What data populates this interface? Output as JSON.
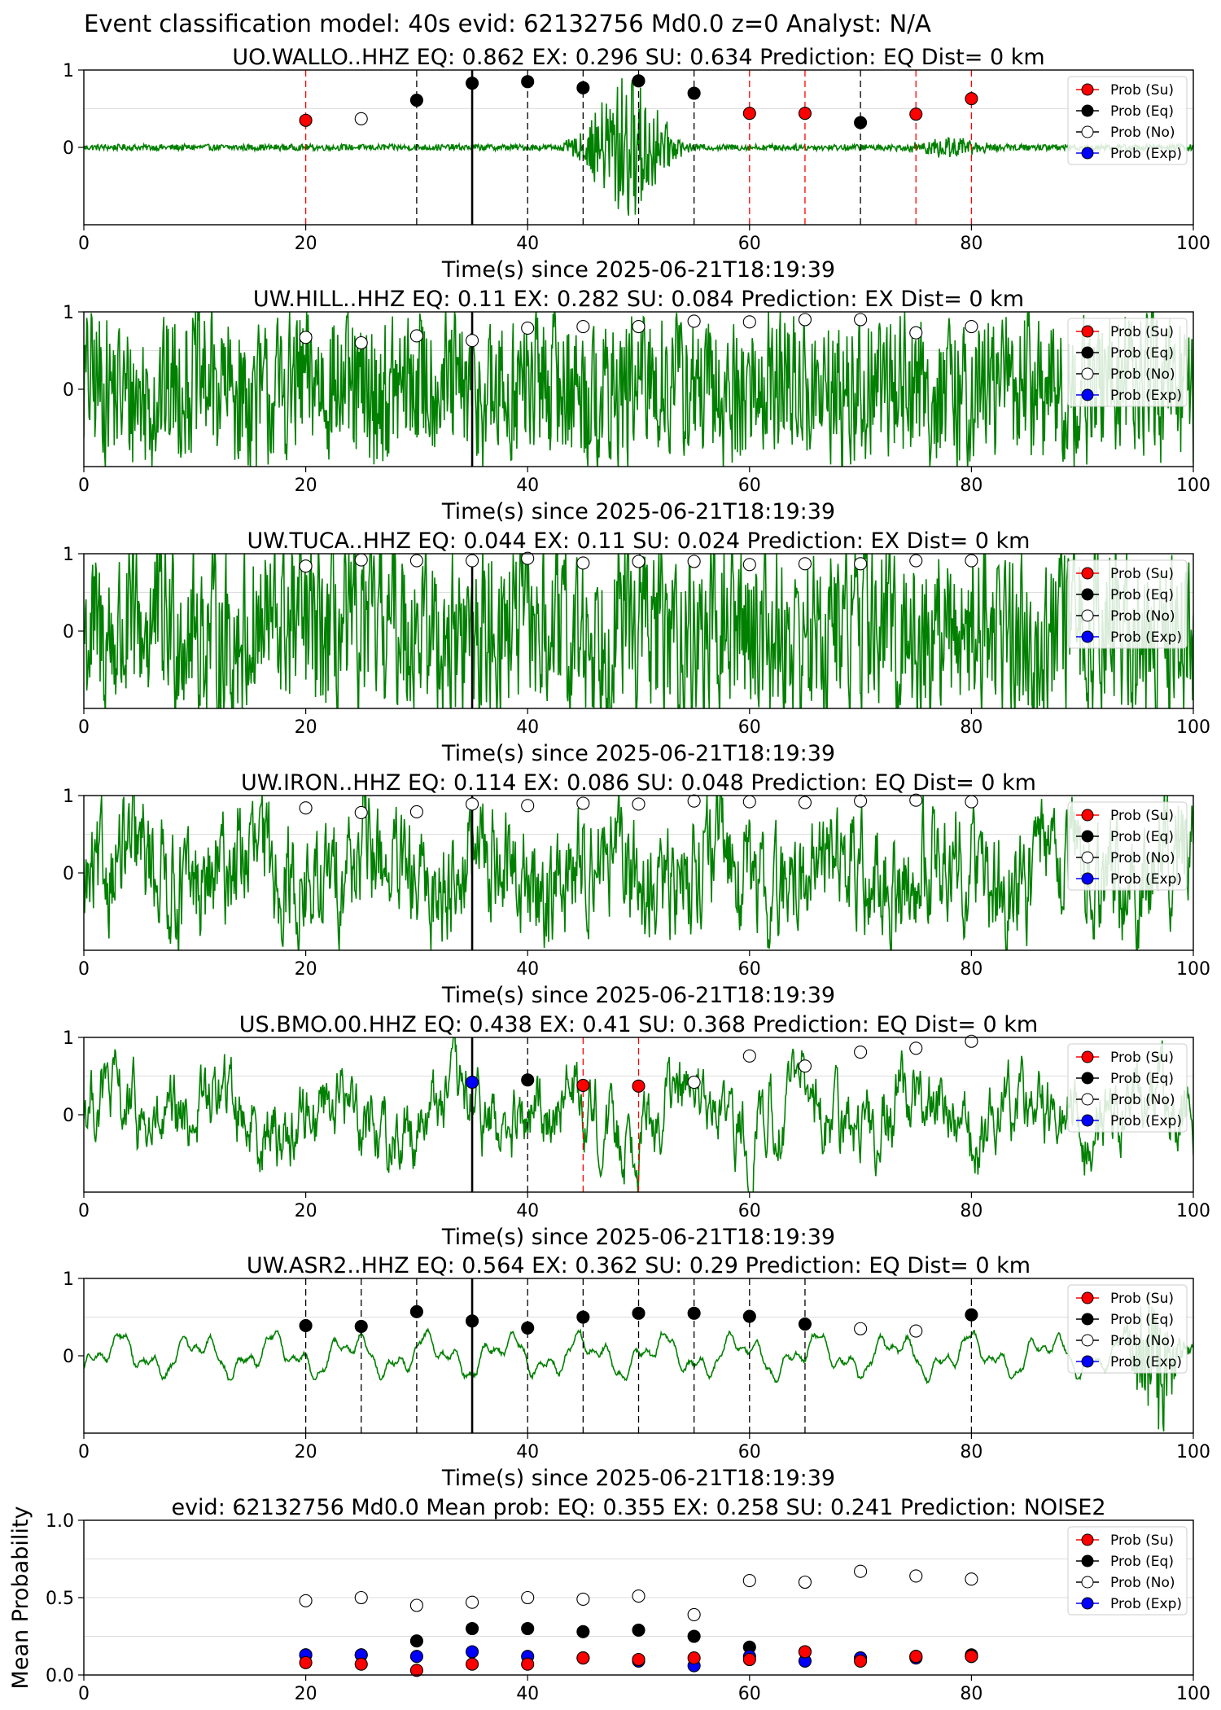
{
  "suptitle": "Event classification model: 40s evid: 62132756 Md0.0 z=0 Analyst: N/A",
  "xlabel": "Time(s) since 2025-06-21T18:19:39",
  "legend": [
    {
      "label": "Prob (Su)",
      "color": "#ff0000",
      "fill": "#ff0000"
    },
    {
      "label": "Prob (Eq)",
      "color": "#000000",
      "fill": "#000000"
    },
    {
      "label": "Prob (No)",
      "color": "#000000",
      "fill": "#ffffff"
    },
    {
      "label": "Prob (Exp)",
      "color": "#0000ff",
      "fill": "#0000ff"
    }
  ],
  "colors": {
    "trace": "#008000",
    "su": "#ff0000",
    "eq": "#000000",
    "exp": "#0000ff",
    "gridline": "#dddddd"
  },
  "chart_data": [
    {
      "type": "line",
      "title": "UO.WALLO..HHZ   EQ: 0.862  EX: 0.296  SU: 0.634   Prediction: EQ    Dist= 0 km",
      "xlim": [
        0,
        100
      ],
      "ylim": [
        -1,
        1
      ],
      "xticks": [
        "0",
        "20",
        "40",
        "60",
        "80",
        "100"
      ],
      "yticks": [
        "0",
        "1"
      ],
      "trace": {
        "style": "event",
        "amp": 0.04,
        "burst": [
          [
            43,
            55,
            0.95
          ],
          [
            73,
            83,
            0.14
          ]
        ]
      },
      "origin_time": 35,
      "windows": [
        {
          "t": 20,
          "cls": "su",
          "p": 0.35
        },
        {
          "t": 25,
          "cls": "no",
          "p": 0.37
        },
        {
          "t": 30,
          "cls": "eq",
          "p": 0.61
        },
        {
          "t": 35,
          "cls": "eq",
          "p": 0.83
        },
        {
          "t": 40,
          "cls": "eq",
          "p": 0.85
        },
        {
          "t": 45,
          "cls": "eq",
          "p": 0.77
        },
        {
          "t": 50,
          "cls": "eq",
          "p": 0.86
        },
        {
          "t": 55,
          "cls": "eq",
          "p": 0.7
        },
        {
          "t": 60,
          "cls": "su",
          "p": 0.44
        },
        {
          "t": 65,
          "cls": "su",
          "p": 0.44
        },
        {
          "t": 70,
          "cls": "eq",
          "p": 0.32
        },
        {
          "t": 75,
          "cls": "su",
          "p": 0.43
        },
        {
          "t": 80,
          "cls": "su",
          "p": 0.63
        }
      ]
    },
    {
      "type": "line",
      "title": "UW.HILL..HHZ   EQ: 0.11  EX: 0.282  SU: 0.084   Prediction: EX    Dist= 0 km",
      "xlim": [
        0,
        100
      ],
      "ylim": [
        -1,
        1
      ],
      "xticks": [
        "0",
        "20",
        "40",
        "60",
        "80",
        "100"
      ],
      "yticks": [
        "0",
        "1"
      ],
      "trace": {
        "style": "noise",
        "amp": 0.6,
        "smooth": 0.2
      },
      "origin_time": 35,
      "windows": [
        {
          "t": 20,
          "cls": "no",
          "p": 0.67
        },
        {
          "t": 25,
          "cls": "no",
          "p": 0.6
        },
        {
          "t": 30,
          "cls": "no",
          "p": 0.69
        },
        {
          "t": 35,
          "cls": "no",
          "p": 0.63
        },
        {
          "t": 40,
          "cls": "no",
          "p": 0.79
        },
        {
          "t": 45,
          "cls": "no",
          "p": 0.81
        },
        {
          "t": 50,
          "cls": "no",
          "p": 0.81
        },
        {
          "t": 55,
          "cls": "no",
          "p": 0.88
        },
        {
          "t": 60,
          "cls": "no",
          "p": 0.87
        },
        {
          "t": 65,
          "cls": "no",
          "p": 0.9
        },
        {
          "t": 70,
          "cls": "no",
          "p": 0.9
        },
        {
          "t": 75,
          "cls": "no",
          "p": 0.73
        },
        {
          "t": 80,
          "cls": "no",
          "p": 0.81
        }
      ]
    },
    {
      "type": "line",
      "title": "UW.TUCA..HHZ   EQ: 0.044  EX: 0.11  SU: 0.024   Prediction: EX    Dist= 0 km",
      "xlim": [
        0,
        100
      ],
      "ylim": [
        -1,
        1
      ],
      "xticks": [
        "0",
        "20",
        "40",
        "60",
        "80",
        "100"
      ],
      "yticks": [
        "0",
        "1"
      ],
      "trace": {
        "style": "noise",
        "amp": 0.72,
        "smooth": 0.3
      },
      "origin_time": 35,
      "windows": [
        {
          "t": 20,
          "cls": "no",
          "p": 0.84
        },
        {
          "t": 25,
          "cls": "no",
          "p": 0.92
        },
        {
          "t": 30,
          "cls": "no",
          "p": 0.91
        },
        {
          "t": 35,
          "cls": "no",
          "p": 0.91
        },
        {
          "t": 40,
          "cls": "no",
          "p": 0.94
        },
        {
          "t": 45,
          "cls": "no",
          "p": 0.88
        },
        {
          "t": 50,
          "cls": "no",
          "p": 0.9
        },
        {
          "t": 55,
          "cls": "no",
          "p": 0.9
        },
        {
          "t": 60,
          "cls": "no",
          "p": 0.86
        },
        {
          "t": 65,
          "cls": "no",
          "p": 0.87
        },
        {
          "t": 70,
          "cls": "no",
          "p": 0.87
        },
        {
          "t": 75,
          "cls": "no",
          "p": 0.91
        },
        {
          "t": 80,
          "cls": "no",
          "p": 0.91
        }
      ]
    },
    {
      "type": "line",
      "title": "UW.IRON..HHZ   EQ: 0.114  EX: 0.086  SU: 0.048   Prediction: EQ    Dist= 0 km",
      "xlim": [
        0,
        100
      ],
      "ylim": [
        -1,
        1
      ],
      "xticks": [
        "0",
        "20",
        "40",
        "60",
        "80",
        "100"
      ],
      "yticks": [
        "0",
        "1"
      ],
      "trace": {
        "style": "noise",
        "amp": 0.55,
        "smooth": 0.55
      },
      "origin_time": 35,
      "windows": [
        {
          "t": 20,
          "cls": "no",
          "p": 0.84
        },
        {
          "t": 25,
          "cls": "no",
          "p": 0.78
        },
        {
          "t": 30,
          "cls": "no",
          "p": 0.79
        },
        {
          "t": 35,
          "cls": "no",
          "p": 0.89
        },
        {
          "t": 40,
          "cls": "no",
          "p": 0.87
        },
        {
          "t": 45,
          "cls": "no",
          "p": 0.9
        },
        {
          "t": 50,
          "cls": "no",
          "p": 0.89
        },
        {
          "t": 55,
          "cls": "no",
          "p": 0.93
        },
        {
          "t": 60,
          "cls": "no",
          "p": 0.92
        },
        {
          "t": 65,
          "cls": "no",
          "p": 0.91
        },
        {
          "t": 70,
          "cls": "no",
          "p": 0.93
        },
        {
          "t": 75,
          "cls": "no",
          "p": 0.94
        },
        {
          "t": 80,
          "cls": "no",
          "p": 0.92
        }
      ]
    },
    {
      "type": "line",
      "title": "US.BMO.00.HHZ   EQ: 0.438  EX: 0.41  SU: 0.368   Prediction: EQ    Dist= 0 km",
      "xlim": [
        0,
        100
      ],
      "ylim": [
        -1,
        1
      ],
      "xticks": [
        "0",
        "20",
        "40",
        "60",
        "80",
        "100"
      ],
      "yticks": [
        "0",
        "1"
      ],
      "trace": {
        "style": "noise",
        "amp": 0.5,
        "smooth": 0.75
      },
      "origin_time": 35,
      "windows": [
        {
          "t": 35,
          "cls": "exp",
          "p": 0.42
        },
        {
          "t": 40,
          "cls": "eq",
          "p": 0.45
        },
        {
          "t": 45,
          "cls": "su",
          "p": 0.38
        },
        {
          "t": 50,
          "cls": "su",
          "p": 0.37
        },
        {
          "t": 55,
          "cls": "no",
          "p": 0.42
        },
        {
          "t": 60,
          "cls": "no",
          "p": 0.76
        },
        {
          "t": 65,
          "cls": "no",
          "p": 0.63
        },
        {
          "t": 70,
          "cls": "no",
          "p": 0.81
        },
        {
          "t": 75,
          "cls": "no",
          "p": 0.86
        },
        {
          "t": 80,
          "cls": "no",
          "p": 0.95
        }
      ]
    },
    {
      "type": "line",
      "title": "UW.ASR2..HHZ   EQ: 0.564  EX: 0.362  SU: 0.29   Prediction: EQ    Dist= 0 km",
      "xlim": [
        0,
        100
      ],
      "ylim": [
        -1,
        1
      ],
      "xticks": [
        "0",
        "20",
        "40",
        "60",
        "80",
        "100"
      ],
      "yticks": [
        "0",
        "1"
      ],
      "trace": {
        "style": "smooth",
        "amp": 0.22,
        "burst": [
          [
            93,
            100,
            0.9
          ]
        ]
      },
      "origin_time": 35,
      "windows": [
        {
          "t": 20,
          "cls": "eq",
          "p": 0.39
        },
        {
          "t": 25,
          "cls": "eq",
          "p": 0.38
        },
        {
          "t": 30,
          "cls": "eq",
          "p": 0.57
        },
        {
          "t": 35,
          "cls": "eq",
          "p": 0.45
        },
        {
          "t": 40,
          "cls": "eq",
          "p": 0.36
        },
        {
          "t": 45,
          "cls": "eq",
          "p": 0.5
        },
        {
          "t": 50,
          "cls": "eq",
          "p": 0.55
        },
        {
          "t": 55,
          "cls": "eq",
          "p": 0.55
        },
        {
          "t": 60,
          "cls": "eq",
          "p": 0.51
        },
        {
          "t": 65,
          "cls": "eq",
          "p": 0.41
        },
        {
          "t": 70,
          "cls": "no",
          "p": 0.35
        },
        {
          "t": 75,
          "cls": "no",
          "p": 0.32
        },
        {
          "t": 80,
          "cls": "eq",
          "p": 0.53
        }
      ]
    },
    {
      "type": "scatter",
      "title": "evid: 62132756  Md0.0    Mean prob:    EQ: 0.355  EX: 0.258  SU: 0.241    Prediction: NOISE2",
      "xlim": [
        0,
        100
      ],
      "ylim": [
        0,
        1
      ],
      "xticks": [
        "0",
        "20",
        "40",
        "60",
        "80",
        "100"
      ],
      "yticks": [
        "0.0",
        "0.5",
        "1.0"
      ],
      "ylabel": "Mean Probability",
      "x": [
        20,
        25,
        30,
        35,
        40,
        45,
        50,
        55,
        60,
        65,
        70,
        75,
        80
      ],
      "series": [
        {
          "name": "Prob (No)",
          "cls": "no",
          "values": [
            0.48,
            0.5,
            0.45,
            0.47,
            0.5,
            0.49,
            0.51,
            0.39,
            0.61,
            0.6,
            0.67,
            0.64,
            0.62
          ]
        },
        {
          "name": "Prob (Eq)",
          "cls": "eq",
          "values": [
            0.13,
            0.13,
            0.22,
            0.3,
            0.3,
            0.28,
            0.29,
            0.25,
            0.18,
            0.15,
            0.11,
            0.12,
            0.13
          ]
        },
        {
          "name": "Prob (Exp)",
          "cls": "exp",
          "values": [
            0.13,
            0.13,
            0.12,
            0.15,
            0.12,
            0.11,
            0.09,
            0.06,
            0.12,
            0.09,
            0.11,
            0.11,
            0.12
          ]
        },
        {
          "name": "Prob (Su)",
          "cls": "su",
          "values": [
            0.08,
            0.07,
            0.03,
            0.07,
            0.07,
            0.11,
            0.1,
            0.11,
            0.1,
            0.15,
            0.09,
            0.12,
            0.12
          ]
        }
      ]
    }
  ]
}
